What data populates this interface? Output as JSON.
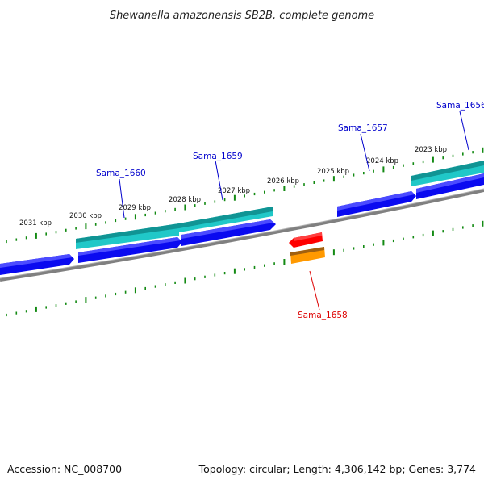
{
  "title": "Shewanella amazonensis SB2B, complete genome",
  "accession": "Accession: NC_008700",
  "summary": "Topology: circular; Length: 4,306,142 bp; Genes: 3,774",
  "colors": {
    "backbone": "#808080",
    "ticks": "#138a13",
    "forward_gene": "#0a0af0",
    "forward_gene_top": "#4b4bff",
    "forward_cds": "#20c8c8",
    "forward_cds_top": "#109494",
    "reverse_gene": "#ff0000",
    "reverse_cds": "#ff9900",
    "reverse_cds_top": "#a06010",
    "forward_label": "#0000cc",
    "reverse_label": "#dd0000"
  },
  "scale_labels": [
    "2031 kbp",
    "2030 kbp",
    "2029 kbp",
    "2028 kbp",
    "2027 kbp",
    "2026 kbp",
    "2025 kbp",
    "2024 kbp",
    "2023 kbp"
  ],
  "gene_labels": [
    {
      "name": "Sama_1660",
      "strand": "forward"
    },
    {
      "name": "Sama_1659",
      "strand": "forward"
    },
    {
      "name": "Sama_1657",
      "strand": "forward"
    },
    {
      "name": "Sama_1656",
      "strand": "forward"
    },
    {
      "name": "Sama_1658",
      "strand": "reverse"
    }
  ]
}
